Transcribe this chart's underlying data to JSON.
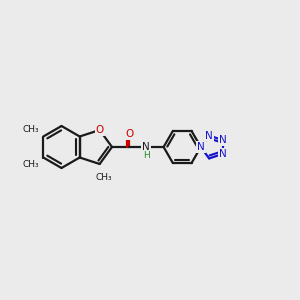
{
  "bg_color": "#ebebeb",
  "bond_color": "#1a1a1a",
  "oxygen_color": "#cc0000",
  "nitrogen_color": "#1414cc",
  "h_color": "#228B22",
  "line_width": 1.6,
  "fig_width": 3.0,
  "fig_height": 3.0,
  "dpi": 100,
  "xlim": [
    0,
    10
  ],
  "ylim": [
    0,
    10
  ]
}
